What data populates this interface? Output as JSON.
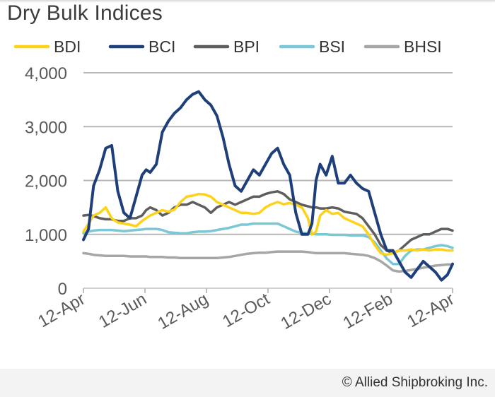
{
  "chart_data": {
    "type": "line",
    "title": "Dry Bulk Indices",
    "xlabel": "",
    "ylabel": "",
    "ylim": [
      0,
      4000
    ],
    "yticks": [
      0,
      1000,
      2000,
      3000,
      4000
    ],
    "ytick_labels": [
      "0",
      "1,000",
      "2,000",
      "3,000",
      "4,000"
    ],
    "xtick_labels": [
      "12-Apr",
      "12-Jun",
      "12-Aug",
      "12-Oct",
      "12-Dec",
      "12-Feb",
      "12-Apr"
    ],
    "x_range": [
      0,
      365
    ],
    "grid": "horizontal",
    "legend_position": "top",
    "series": [
      {
        "name": "BDI",
        "color": "#ffd21a",
        "x": [
          0,
          5,
          10,
          16,
          22,
          28,
          34,
          40,
          46,
          52,
          58,
          62,
          66,
          72,
          78,
          84,
          90,
          96,
          102,
          108,
          114,
          120,
          126,
          132,
          138,
          144,
          150,
          156,
          162,
          168,
          174,
          180,
          186,
          192,
          198,
          204,
          210,
          216,
          222,
          226,
          230,
          234,
          240,
          246,
          252,
          258,
          264,
          270,
          276,
          282,
          288,
          294,
          300,
          306,
          312,
          318,
          324,
          330,
          336,
          342,
          348,
          354,
          360,
          365
        ],
        "values": [
          1050,
          1200,
          1350,
          1400,
          1500,
          1300,
          1220,
          1200,
          1180,
          1150,
          1250,
          1300,
          1350,
          1400,
          1450,
          1420,
          1460,
          1600,
          1700,
          1720,
          1750,
          1740,
          1700,
          1600,
          1550,
          1500,
          1450,
          1400,
          1400,
          1380,
          1400,
          1500,
          1560,
          1600,
          1560,
          1580,
          1550,
          1500,
          1300,
          1000,
          1050,
          1350,
          1450,
          1380,
          1400,
          1300,
          1250,
          1200,
          1150,
          1000,
          800,
          650,
          620,
          650,
          700,
          700,
          720,
          700,
          720,
          700,
          720,
          720,
          700,
          700
        ]
      },
      {
        "name": "BCI",
        "color": "#1f3f7a",
        "x": [
          0,
          5,
          10,
          16,
          22,
          28,
          34,
          40,
          46,
          52,
          58,
          62,
          66,
          72,
          78,
          84,
          90,
          96,
          102,
          108,
          114,
          120,
          126,
          132,
          138,
          144,
          150,
          156,
          162,
          168,
          174,
          180,
          186,
          192,
          198,
          204,
          210,
          216,
          222,
          226,
          230,
          234,
          240,
          246,
          252,
          258,
          264,
          270,
          276,
          282,
          288,
          294,
          300,
          306,
          312,
          318,
          324,
          330,
          336,
          342,
          348,
          354,
          360,
          365
        ],
        "values": [
          900,
          1100,
          1900,
          2200,
          2600,
          2650,
          1800,
          1400,
          1300,
          1700,
          2100,
          2200,
          2150,
          2300,
          2900,
          3100,
          3250,
          3350,
          3500,
          3600,
          3650,
          3500,
          3400,
          3200,
          2800,
          2300,
          1900,
          1800,
          2000,
          2200,
          2100,
          2300,
          2500,
          2600,
          2300,
          2100,
          1400,
          1000,
          1000,
          1200,
          2000,
          2300,
          2100,
          2450,
          1950,
          1950,
          2100,
          1950,
          1850,
          1800,
          1400,
          1000,
          700,
          700,
          500,
          300,
          200,
          350,
          500,
          400,
          300,
          150,
          250,
          450
        ]
      },
      {
        "name": "BPI",
        "color": "#5e5e5e",
        "x": [
          0,
          5,
          10,
          16,
          22,
          28,
          34,
          40,
          46,
          52,
          58,
          62,
          66,
          72,
          78,
          84,
          90,
          96,
          102,
          108,
          114,
          120,
          126,
          132,
          138,
          144,
          150,
          156,
          162,
          168,
          174,
          180,
          186,
          192,
          198,
          204,
          210,
          216,
          222,
          226,
          230,
          234,
          240,
          246,
          252,
          258,
          264,
          270,
          276,
          282,
          288,
          294,
          300,
          306,
          312,
          318,
          324,
          330,
          336,
          342,
          348,
          354,
          360,
          365
        ],
        "values": [
          1350,
          1360,
          1340,
          1300,
          1280,
          1280,
          1250,
          1250,
          1300,
          1300,
          1350,
          1450,
          1500,
          1450,
          1350,
          1400,
          1500,
          1550,
          1550,
          1600,
          1550,
          1500,
          1400,
          1500,
          1550,
          1600,
          1550,
          1600,
          1650,
          1700,
          1700,
          1750,
          1780,
          1800,
          1750,
          1650,
          1600,
          1550,
          1520,
          1500,
          1500,
          1480,
          1480,
          1500,
          1480,
          1420,
          1400,
          1380,
          1300,
          1150,
          1000,
          800,
          700,
          650,
          700,
          800,
          900,
          950,
          1000,
          1000,
          1050,
          1100,
          1100,
          1070
        ]
      },
      {
        "name": "BSI",
        "color": "#7ac7d6",
        "x": [
          0,
          5,
          10,
          16,
          22,
          28,
          34,
          40,
          46,
          52,
          58,
          62,
          66,
          72,
          78,
          84,
          90,
          96,
          102,
          108,
          114,
          120,
          126,
          132,
          138,
          144,
          150,
          156,
          162,
          168,
          174,
          180,
          186,
          192,
          198,
          204,
          210,
          216,
          222,
          226,
          230,
          234,
          240,
          246,
          252,
          258,
          264,
          270,
          276,
          282,
          288,
          294,
          300,
          306,
          312,
          318,
          324,
          330,
          336,
          342,
          348,
          354,
          360,
          365
        ],
        "values": [
          1020,
          1050,
          1070,
          1080,
          1080,
          1080,
          1070,
          1060,
          1070,
          1080,
          1090,
          1100,
          1100,
          1100,
          1080,
          1040,
          1030,
          1020,
          1020,
          1040,
          1050,
          1050,
          1060,
          1080,
          1100,
          1120,
          1150,
          1180,
          1180,
          1200,
          1200,
          1200,
          1200,
          1200,
          1150,
          1100,
          1050,
          1030,
          1020,
          1010,
          1000,
          1000,
          1000,
          990,
          990,
          990,
          980,
          980,
          980,
          950,
          850,
          700,
          550,
          450,
          450,
          600,
          700,
          720,
          720,
          750,
          780,
          800,
          780,
          750
        ]
      },
      {
        "name": "BHSI",
        "color": "#a6a6a6",
        "x": [
          0,
          5,
          10,
          16,
          22,
          28,
          34,
          40,
          46,
          52,
          58,
          62,
          66,
          72,
          78,
          84,
          90,
          96,
          102,
          108,
          114,
          120,
          126,
          132,
          138,
          144,
          150,
          156,
          162,
          168,
          174,
          180,
          186,
          192,
          198,
          204,
          210,
          216,
          222,
          226,
          230,
          234,
          240,
          246,
          252,
          258,
          264,
          270,
          276,
          282,
          288,
          294,
          300,
          306,
          312,
          318,
          324,
          330,
          336,
          342,
          348,
          354,
          360,
          365
        ],
        "values": [
          650,
          640,
          620,
          610,
          600,
          600,
          600,
          600,
          590,
          590,
          590,
          590,
          580,
          580,
          580,
          570,
          570,
          560,
          560,
          560,
          560,
          560,
          560,
          560,
          570,
          580,
          600,
          620,
          640,
          650,
          660,
          660,
          670,
          680,
          680,
          680,
          680,
          680,
          670,
          660,
          650,
          650,
          650,
          650,
          650,
          650,
          640,
          630,
          620,
          600,
          560,
          500,
          420,
          330,
          310,
          320,
          340,
          360,
          380,
          400,
          420,
          430,
          440,
          440
        ]
      }
    ]
  },
  "credit": "© Allied Shipbroking Inc."
}
